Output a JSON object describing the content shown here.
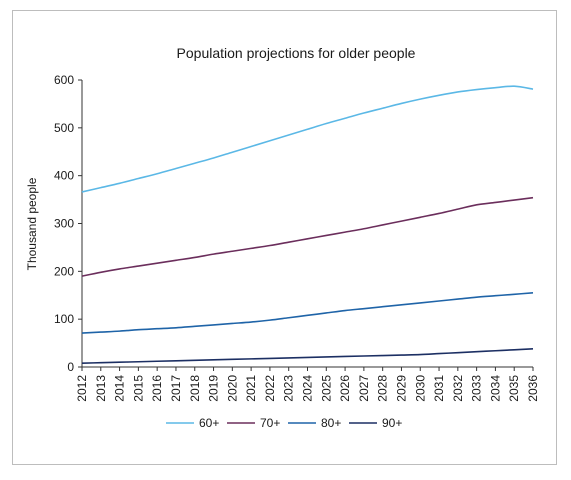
{
  "chart_data": {
    "type": "line",
    "title": "Population projections for older people",
    "xlabel": "",
    "ylabel": "Thousand people",
    "ylim": [
      0,
      600
    ],
    "yticks": [
      0,
      100,
      200,
      300,
      400,
      500,
      600
    ],
    "grid": false,
    "legend_position": "bottom",
    "x": [
      "2012",
      "2013",
      "2014",
      "2015",
      "2016",
      "2017",
      "2018",
      "2019",
      "2020",
      "2021",
      "2022",
      "2023",
      "2024",
      "2025",
      "2026",
      "2027",
      "2028",
      "2029",
      "2030",
      "2031",
      "2032",
      "2033",
      "2034",
      "2035",
      "2036"
    ],
    "series": [
      {
        "name": "60+",
        "color": "#5bb8e6",
        "values": [
          366,
          375,
          384,
          394,
          404,
          415,
          426,
          437,
          449,
          461,
          473,
          485,
          497,
          509,
          520,
          531,
          541,
          551,
          560,
          568,
          575,
          580,
          584,
          587,
          581
        ]
      },
      {
        "name": "70+",
        "color": "#6b2e5c",
        "values": [
          190,
          198,
          205,
          211,
          217,
          223,
          229,
          236,
          242,
          248,
          254,
          261,
          268,
          275,
          282,
          289,
          297,
          305,
          313,
          321,
          330,
          339,
          344,
          349,
          354
        ]
      },
      {
        "name": "80+",
        "color": "#1f64a8",
        "values": [
          71,
          73,
          75,
          78,
          80,
          82,
          85,
          88,
          91,
          94,
          98,
          103,
          108,
          113,
          118,
          122,
          126,
          130,
          134,
          138,
          142,
          146,
          149,
          152,
          155
        ]
      },
      {
        "name": "90+",
        "color": "#1c2f63",
        "values": [
          8,
          9,
          10,
          11,
          12,
          13,
          14,
          15,
          16,
          17,
          18,
          19,
          20,
          21,
          22,
          23,
          24,
          25,
          26,
          28,
          30,
          32,
          34,
          36,
          38
        ]
      }
    ]
  }
}
